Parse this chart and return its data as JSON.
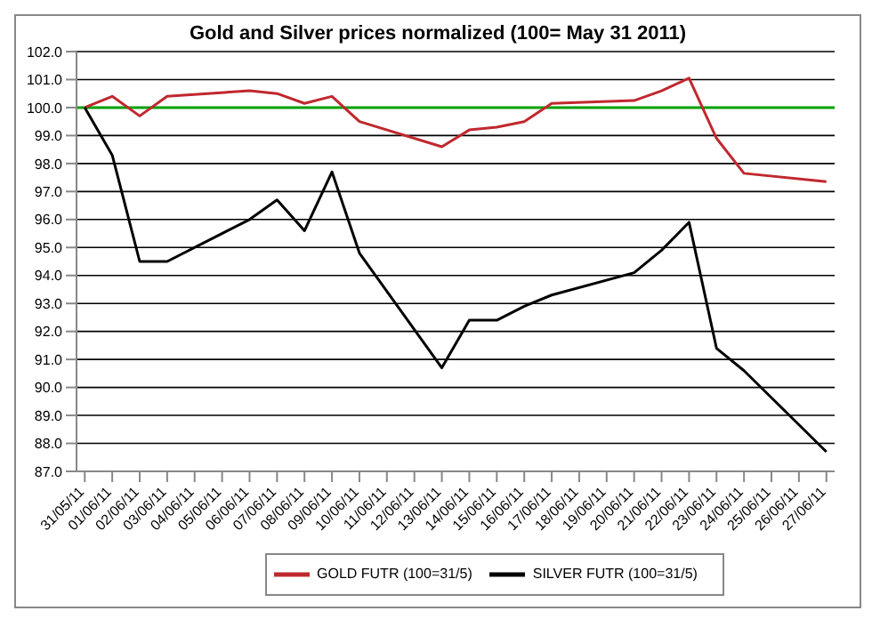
{
  "chart_data": {
    "type": "line",
    "title": "Gold and Silver prices normalized (100= May 31 2011)",
    "categories": [
      "31/05/11",
      "01/06/11",
      "02/06/11",
      "03/06/11",
      "04/06/11",
      "05/06/11",
      "06/06/11",
      "07/06/11",
      "08/06/11",
      "09/06/11",
      "10/06/11",
      "11/06/11",
      "12/06/11",
      "13/06/11",
      "14/06/11",
      "15/06/11",
      "16/06/11",
      "17/06/11",
      "18/06/11",
      "19/06/11",
      "20/06/11",
      "21/06/11",
      "22/06/11",
      "23/06/11",
      "24/06/11",
      "25/06/11",
      "26/06/11",
      "27/06/11"
    ],
    "series": [
      {
        "name": "GOLD  FUTR (100=31/5)",
        "color": "#c0282e",
        "values": [
          100,
          100.4,
          99.7,
          100.4,
          null,
          null,
          100.6,
          100.5,
          100.15,
          100.4,
          99.5,
          null,
          null,
          98.6,
          99.2,
          99.3,
          99.5,
          100.15,
          null,
          null,
          100.25,
          100.6,
          101.05,
          98.9,
          97.65,
          null,
          null,
          97.35
        ]
      },
      {
        "name": "SILVER  FUTR (100=31/5)",
        "color": "#000000",
        "values": [
          100,
          98.3,
          94.5,
          94.5,
          null,
          null,
          96.0,
          96.7,
          95.6,
          97.7,
          94.8,
          null,
          null,
          90.7,
          92.4,
          92.4,
          92.9,
          93.3,
          null,
          null,
          94.1,
          94.9,
          95.9,
          91.4,
          90.6,
          null,
          null,
          87.7
        ]
      }
    ],
    "ylim": [
      87,
      102
    ],
    "yticks": [
      {
        "value": 87,
        "label": "87.0"
      },
      {
        "value": 88,
        "label": "88.0"
      },
      {
        "value": 89,
        "label": "89.0"
      },
      {
        "value": 90,
        "label": "90.0"
      },
      {
        "value": 91,
        "label": "91.0"
      },
      {
        "value": 92,
        "label": "92.0"
      },
      {
        "value": 93,
        "label": "93.0"
      },
      {
        "value": 94,
        "label": "94.0"
      },
      {
        "value": 95,
        "label": "95.0"
      },
      {
        "value": 96,
        "label": "96.0"
      },
      {
        "value": 97,
        "label": "97.0"
      },
      {
        "value": 98,
        "label": "98.0"
      },
      {
        "value": 99,
        "label": "99.0"
      },
      {
        "value": 100,
        "label": "100.0"
      },
      {
        "value": 101,
        "label": "101.0"
      },
      {
        "value": 102,
        "label": "102.0"
      }
    ],
    "ref_lines": [
      {
        "axis": "y",
        "value": 100,
        "label": null,
        "color": "#00a000"
      }
    ],
    "grid": "y",
    "legend": "bottom",
    "marker": "none",
    "line_style": "solid"
  }
}
